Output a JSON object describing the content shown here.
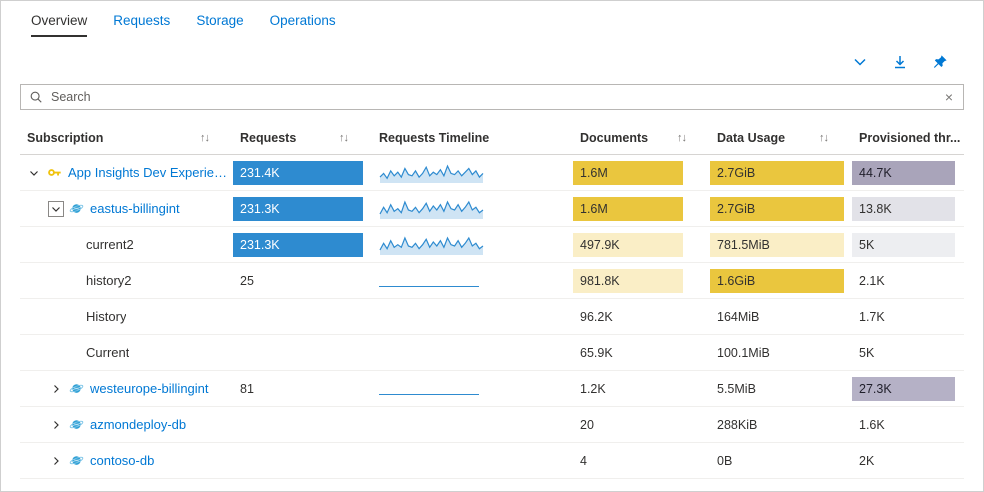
{
  "tabs": [
    {
      "label": "Overview",
      "active": true
    },
    {
      "label": "Requests",
      "active": false
    },
    {
      "label": "Storage",
      "active": false
    },
    {
      "label": "Operations",
      "active": false
    }
  ],
  "toolbar": {
    "icons": [
      "collapse-chevron",
      "download",
      "pin"
    ]
  },
  "search": {
    "placeholder": "Search",
    "clear_glyph": "×"
  },
  "table": {
    "sort_glyph": "↑↓",
    "columns": [
      {
        "label": "Subscription",
        "sortable": true
      },
      {
        "label": "Requests",
        "sortable": true
      },
      {
        "label": "Requests Timeline",
        "sortable": false
      },
      {
        "label": "Documents",
        "sortable": true
      },
      {
        "label": "Data Usage",
        "sortable": true
      },
      {
        "label": "Provisioned thr...",
        "sortable": false
      }
    ],
    "rows": [
      {
        "name": "App Insights Dev Experience",
        "level": 0,
        "expand": "down",
        "icon": "key",
        "link": true,
        "requests": {
          "text": "231.4K",
          "style": "blue"
        },
        "timeline": {
          "kind": "area",
          "values": [
            4,
            7,
            3,
            9,
            5,
            8,
            4,
            11,
            6,
            5,
            9,
            4,
            7,
            12,
            5,
            8,
            6,
            10,
            5,
            13,
            7,
            6,
            9,
            5,
            8,
            11,
            6,
            9,
            4,
            7
          ]
        },
        "documents": {
          "text": "1.6M",
          "style": "gold"
        },
        "data_usage": {
          "text": "2.7GiB",
          "style": "gold"
        },
        "provisioned": {
          "text": "44.7K",
          "style": "purple"
        }
      },
      {
        "name": "eastus-billingint",
        "level": 1,
        "expand": "down-boxed",
        "icon": "cosmos",
        "link": true,
        "requests": {
          "text": "231.3K",
          "style": "blue"
        },
        "timeline": {
          "kind": "area",
          "values": [
            3,
            8,
            4,
            10,
            5,
            7,
            4,
            12,
            6,
            5,
            8,
            4,
            7,
            11,
            5,
            9,
            6,
            10,
            5,
            12,
            7,
            6,
            10,
            5,
            8,
            12,
            6,
            8,
            4,
            6
          ]
        },
        "documents": {
          "text": "1.6M",
          "style": "gold"
        },
        "data_usage": {
          "text": "2.7GiB",
          "style": "gold"
        },
        "provisioned": {
          "text": "13.8K",
          "style": "lightgray"
        }
      },
      {
        "name": "current2",
        "level": 2,
        "expand": null,
        "icon": null,
        "link": false,
        "requests": {
          "text": "231.3K",
          "style": "blue"
        },
        "timeline": {
          "kind": "area",
          "values": [
            3,
            8,
            4,
            10,
            5,
            7,
            5,
            12,
            6,
            5,
            8,
            4,
            7,
            11,
            5,
            9,
            6,
            10,
            5,
            12,
            7,
            6,
            10,
            5,
            8,
            12,
            6,
            8,
            4,
            6
          ]
        },
        "documents": {
          "text": "497.9K",
          "style": "lightgold"
        },
        "data_usage": {
          "text": "781.5MiB",
          "style": "lightgold"
        },
        "provisioned": {
          "text": "5K",
          "style": "faintgray"
        }
      },
      {
        "name": "history2",
        "level": 2,
        "expand": null,
        "icon": null,
        "link": false,
        "requests": {
          "text": "25",
          "style": "none"
        },
        "timeline": {
          "kind": "flat"
        },
        "documents": {
          "text": "981.8K",
          "style": "lightgold"
        },
        "data_usage": {
          "text": "1.6GiB",
          "style": "gold"
        },
        "provisioned": {
          "text": "2.1K",
          "style": "none"
        }
      },
      {
        "name": "History",
        "level": 2,
        "expand": null,
        "icon": null,
        "link": false,
        "requests": null,
        "timeline": null,
        "documents": {
          "text": "96.2K",
          "style": "none"
        },
        "data_usage": {
          "text": "164MiB",
          "style": "none"
        },
        "provisioned": {
          "text": "1.7K",
          "style": "none"
        }
      },
      {
        "name": "Current",
        "level": 2,
        "expand": null,
        "icon": null,
        "link": false,
        "requests": null,
        "timeline": null,
        "documents": {
          "text": "65.9K",
          "style": "none"
        },
        "data_usage": {
          "text": "100.1MiB",
          "style": "none"
        },
        "provisioned": {
          "text": "5K",
          "style": "none"
        }
      },
      {
        "name": "westeurope-billingint",
        "level": 1,
        "expand": "right",
        "icon": "cosmos",
        "link": true,
        "requests": {
          "text": "81",
          "style": "none"
        },
        "timeline": {
          "kind": "flat"
        },
        "documents": {
          "text": "1.2K",
          "style": "none"
        },
        "data_usage": {
          "text": "5.5MiB",
          "style": "none"
        },
        "provisioned": {
          "text": "27.3K",
          "style": "purple2"
        }
      },
      {
        "name": "azmondeploy-db",
        "level": 1,
        "expand": "right",
        "icon": "cosmos",
        "link": true,
        "requests": null,
        "timeline": null,
        "documents": {
          "text": "20",
          "style": "none"
        },
        "data_usage": {
          "text": "288KiB",
          "style": "none"
        },
        "provisioned": {
          "text": "1.6K",
          "style": "none"
        }
      },
      {
        "name": "contoso-db",
        "level": 1,
        "expand": "right",
        "icon": "cosmos",
        "link": true,
        "requests": null,
        "timeline": null,
        "documents": {
          "text": "4",
          "style": "none"
        },
        "data_usage": {
          "text": "0B",
          "style": "none"
        },
        "provisioned": {
          "text": "2K",
          "style": "none"
        }
      }
    ]
  },
  "colors": {
    "accent": "#0078d4",
    "bar_blue": "#2e8bd0",
    "bar_gold": "#eac63e",
    "bar_lightgold": "#faeec6",
    "bar_purple": "#a9a4ba",
    "bar_purple2": "#b5b1c6",
    "bar_lightgray": "#e2e2e8",
    "bar_faintgray": "#edeef1",
    "spark_stroke": "#2e8bd0",
    "spark_fill": "#cfe4f4"
  }
}
